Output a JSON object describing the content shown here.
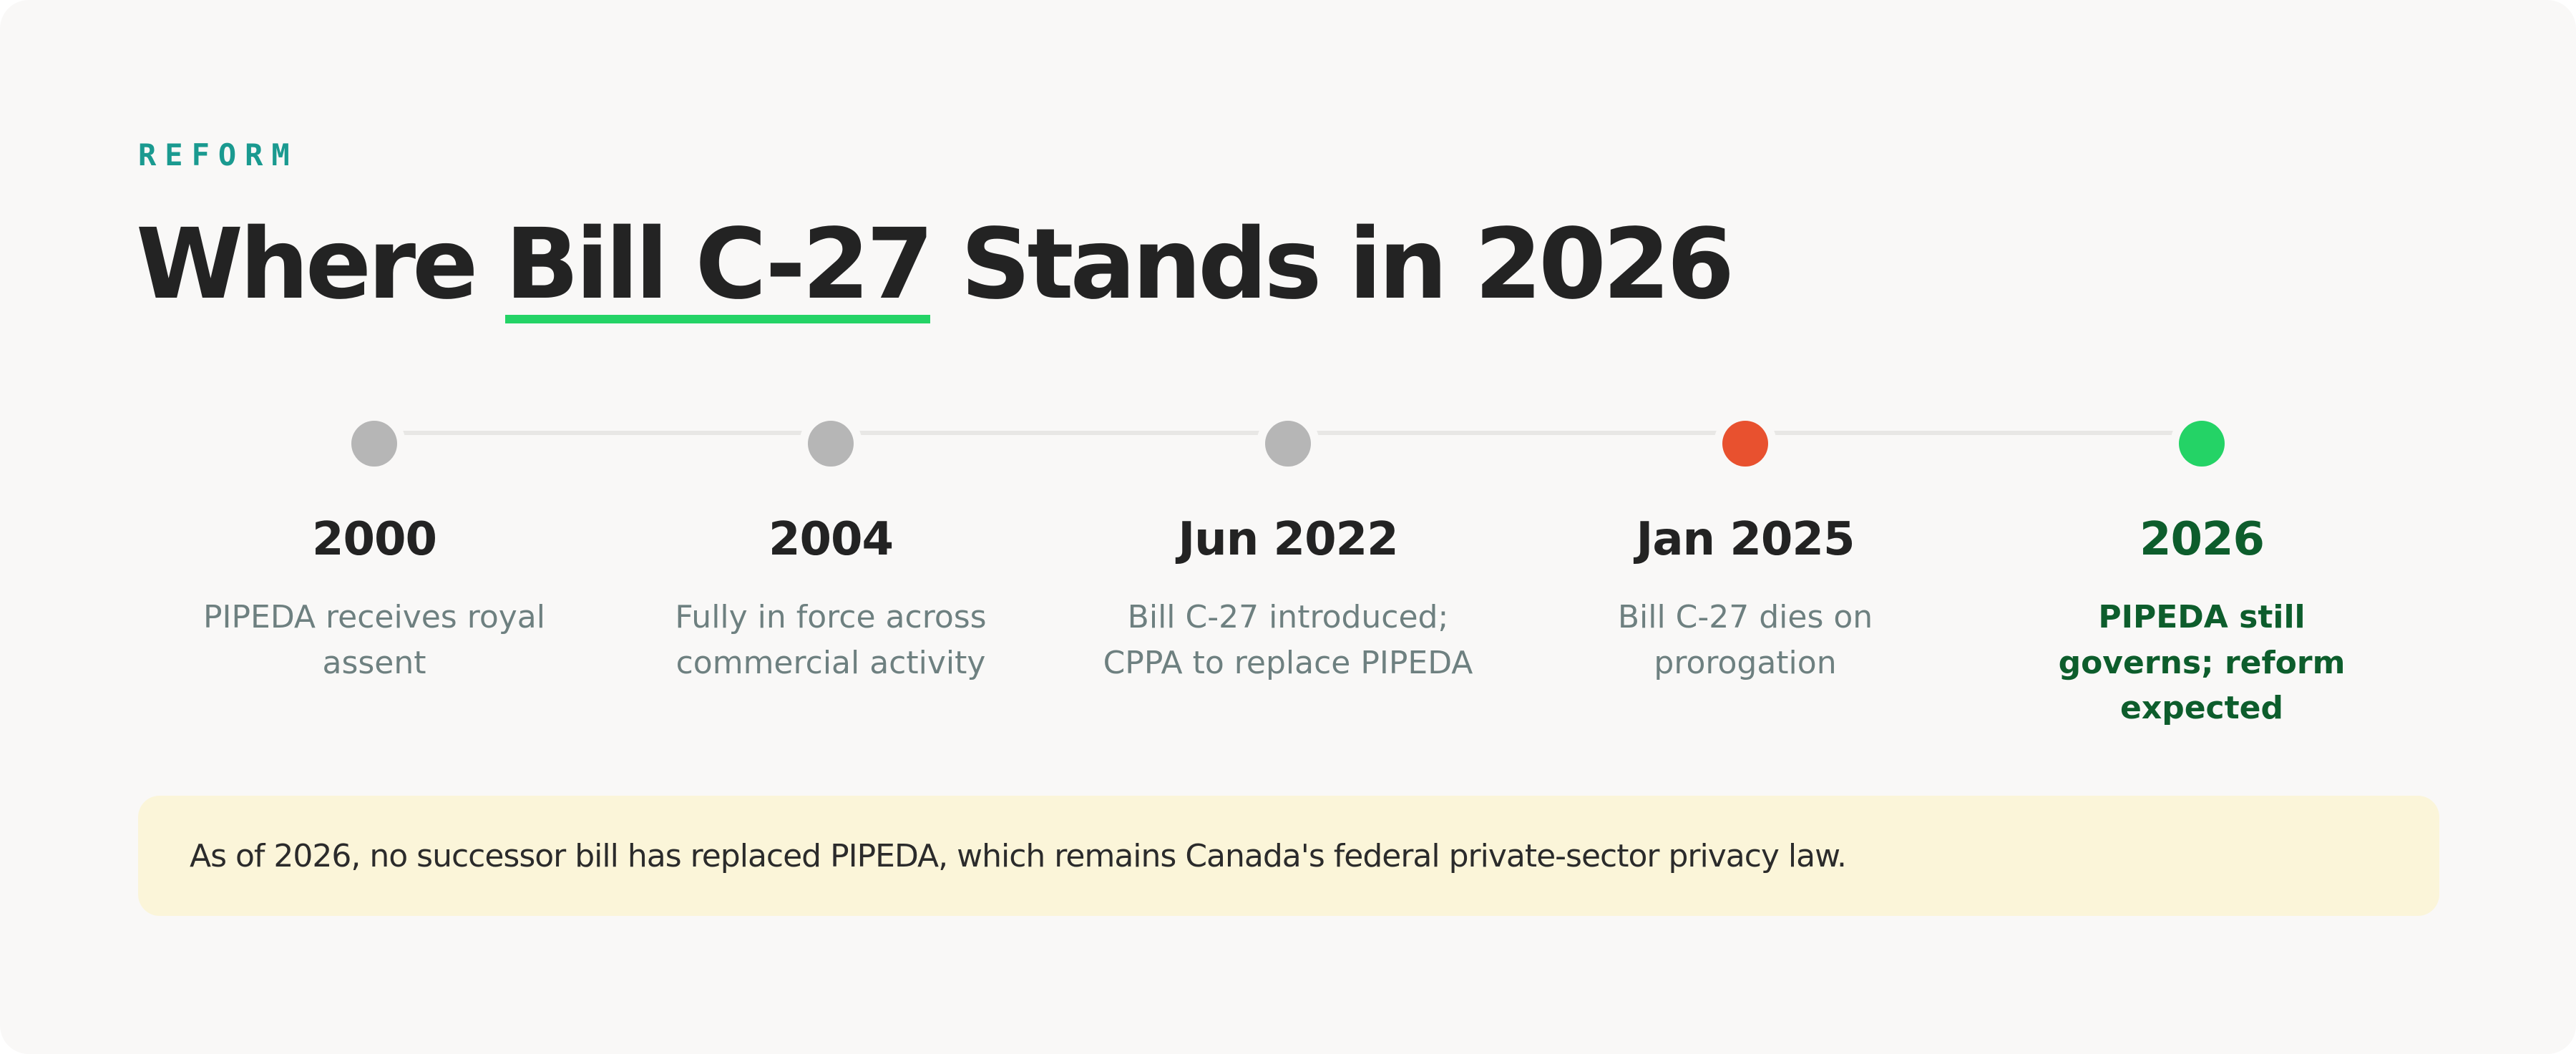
{
  "header": {
    "eyebrow": "REFORM",
    "title_before": "Where ",
    "title_highlight": "Bill C-27",
    "title_after": " Stands in 2026",
    "highlight_color": "#24d366"
  },
  "timeline": {
    "stages": [
      {
        "year": "2000",
        "description": "PIPEDA receives royal assent",
        "status": "past",
        "dot_color": "#b6b6b6"
      },
      {
        "year": "2004",
        "description": "Fully in force across commercial activity",
        "status": "past",
        "dot_color": "#b6b6b6"
      },
      {
        "year": "Jun 2022",
        "description": "Bill C-27 introduced; CPPA to replace PIPEDA",
        "status": "past",
        "dot_color": "#b6b6b6"
      },
      {
        "year": "Jan 2025",
        "description": "Bill C-27 dies on prorogation",
        "status": "failed",
        "dot_color": "#e8512f"
      },
      {
        "year": "2026",
        "description": "PIPEDA still governs; reform expected",
        "status": "current",
        "dot_color": "#24d366"
      }
    ]
  },
  "callout": {
    "text": "As of 2026, no successor bill has replaced PIPEDA, which remains Canada's federal private-sector privacy law.",
    "background": "#fbf5d9"
  }
}
